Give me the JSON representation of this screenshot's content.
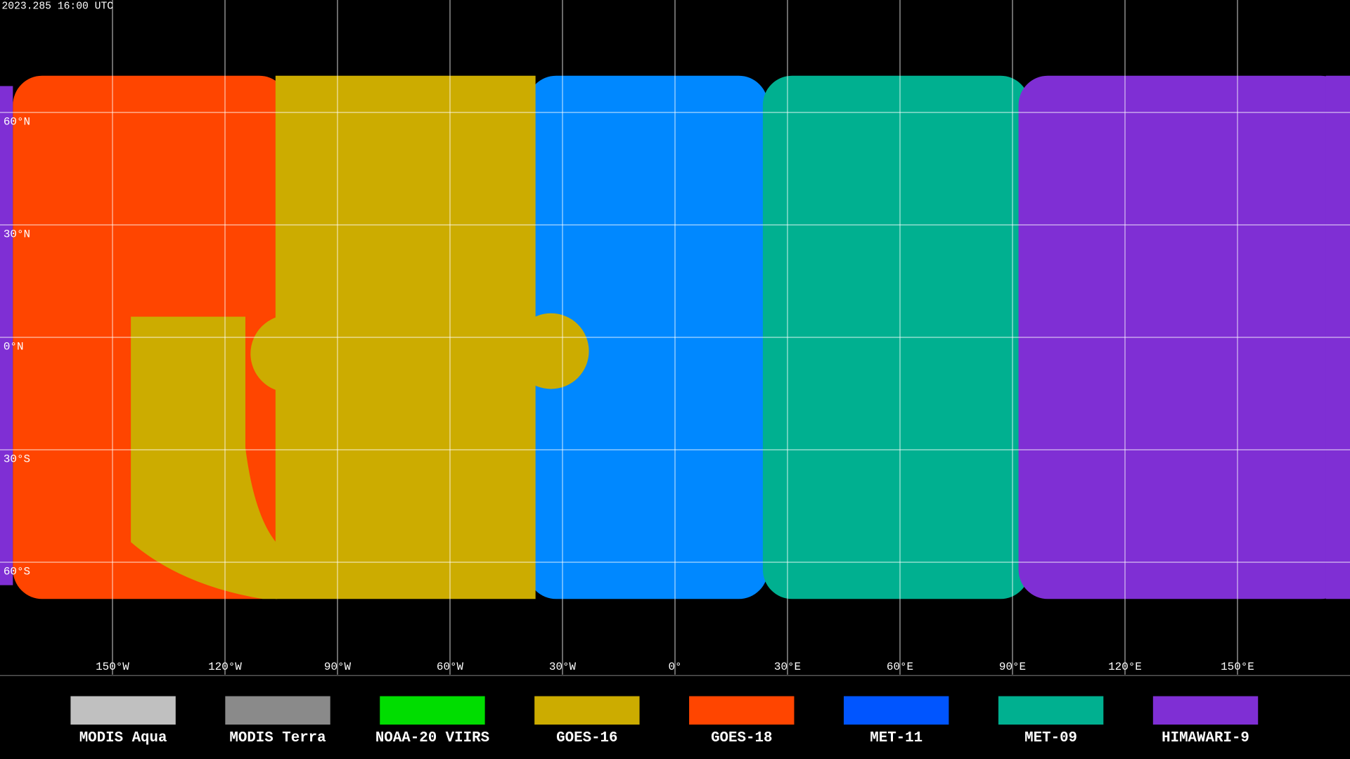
{
  "header": {
    "timestamp": "2023.285 16:00 UTC"
  },
  "map": {
    "latitude_labels": [
      "60°N",
      "30°N",
      "0°N",
      "30°S",
      "60°S"
    ],
    "longitude_labels": [
      "150°W",
      "120°W",
      "90°W",
      "60°W",
      "30°W",
      "0°",
      "30°E",
      "60°E",
      "90°E",
      "120°E",
      "150°E"
    ]
  },
  "legend": [
    {
      "label": "MODIS Aqua",
      "color": "#c0c0c0"
    },
    {
      "label": "MODIS Terra",
      "color": "#8a8a8a"
    },
    {
      "label": "NOAA-20 VIIRS",
      "color": "#00dd00"
    },
    {
      "label": "GOES-16",
      "color": "#ccac00"
    },
    {
      "label": "GOES-18",
      "color": "#ff4500"
    },
    {
      "label": "MET-11",
      "color": "#0055ff"
    },
    {
      "label": "MET-09",
      "color": "#00b090"
    },
    {
      "label": "HIMAWARI-9",
      "color": "#7f2fd4"
    }
  ]
}
